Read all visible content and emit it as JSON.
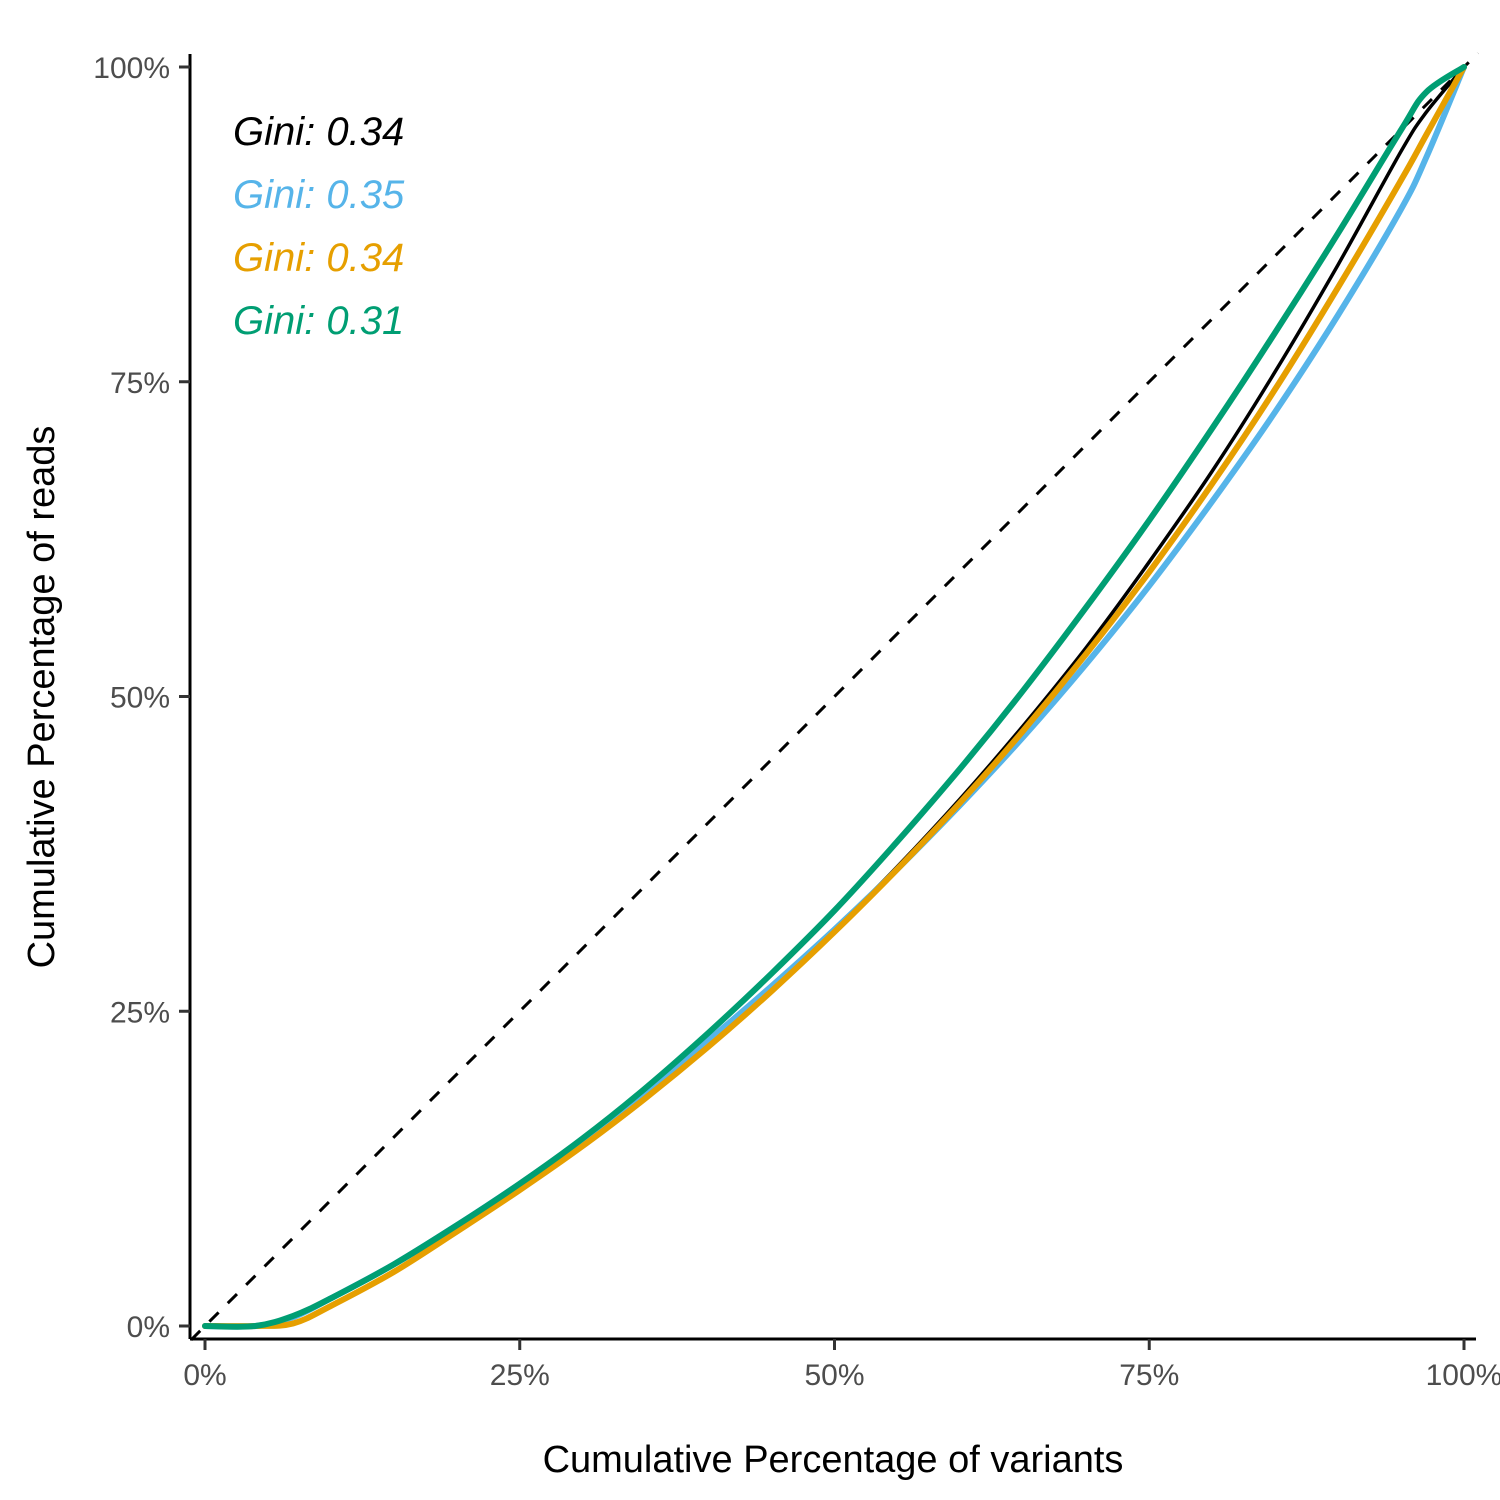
{
  "chart_data": {
    "type": "line",
    "title": "",
    "xlabel": "Cumulative Percentage of variants",
    "ylabel": "Cumulative Percentage of reads",
    "xlim": [
      0,
      100
    ],
    "ylim": [
      0,
      100
    ],
    "x_ticks": [
      0,
      25,
      50,
      75,
      100
    ],
    "y_ticks": [
      0,
      25,
      50,
      75,
      100
    ],
    "x_tick_labels": [
      "0%",
      "25%",
      "50%",
      "75%",
      "100%"
    ],
    "y_tick_labels": [
      "0%",
      "25%",
      "50%",
      "75%",
      "100%"
    ],
    "grid": false,
    "legend": "none",
    "reference_line": {
      "style": "dashed",
      "color": "#000000",
      "x": [
        0,
        100
      ],
      "y": [
        0,
        100
      ]
    },
    "annotations": [
      {
        "text": "Gini: 0.34",
        "color": "#000000"
      },
      {
        "text": "Gini: 0.35",
        "color": "#56B4E9"
      },
      {
        "text": "Gini: 0.34",
        "color": "#E69F00"
      },
      {
        "text": "Gini: 0.31",
        "color": "#009E73"
      }
    ],
    "series": [
      {
        "color": "#000000",
        "x": [
          0,
          4,
          7,
          10,
          15,
          20,
          25,
          30,
          35,
          40,
          45,
          50,
          55,
          60,
          65,
          70,
          75,
          80,
          85,
          90,
          95,
          97,
          100
        ],
        "y": [
          0,
          0,
          0.8,
          2.2,
          4.8,
          7.8,
          10.9,
          14.4,
          18.3,
          22.4,
          26.8,
          31.5,
          36.5,
          41.9,
          47.7,
          53.9,
          60.7,
          67.9,
          75.8,
          84.3,
          93.3,
          96.4,
          100
        ]
      },
      {
        "color": "#56B4E9",
        "x": [
          0,
          4,
          7,
          10,
          15,
          20,
          25,
          30,
          35,
          40,
          45,
          50,
          55,
          60,
          65,
          70,
          75,
          80,
          85,
          90,
          95,
          97,
          100
        ],
        "y": [
          0,
          0,
          0.7,
          2.2,
          4.9,
          8.0,
          11.3,
          14.8,
          18.6,
          22.7,
          27.0,
          31.5,
          36.3,
          41.4,
          46.8,
          52.6,
          58.8,
          65.5,
          72.6,
          80.3,
          88.7,
          92.8,
          100
        ]
      },
      {
        "color": "#E69F00",
        "x": [
          0,
          4,
          7,
          10,
          15,
          20,
          25,
          30,
          35,
          40,
          45,
          50,
          55,
          60,
          65,
          70,
          75,
          80,
          85,
          90,
          95,
          97,
          100
        ],
        "y": [
          0,
          0,
          0.2,
          1.6,
          4.3,
          7.5,
          10.8,
          14.3,
          18.1,
          22.2,
          26.6,
          31.3,
          36.3,
          41.6,
          47.3,
          53.4,
          59.9,
          66.9,
          74.4,
          82.5,
          91.0,
          94.6,
          100
        ]
      },
      {
        "color": "#009E73",
        "x": [
          0,
          4,
          7,
          10,
          15,
          20,
          25,
          30,
          35,
          40,
          45,
          50,
          55,
          60,
          65,
          70,
          75,
          80,
          85,
          90,
          95,
          97,
          100
        ],
        "y": [
          0,
          0,
          0.8,
          2.2,
          4.9,
          8.0,
          11.3,
          14.9,
          18.9,
          23.3,
          28.0,
          33.0,
          38.5,
          44.3,
          50.5,
          57.1,
          64.0,
          71.3,
          78.9,
          86.8,
          95.0,
          98.0,
          100
        ]
      }
    ]
  }
}
